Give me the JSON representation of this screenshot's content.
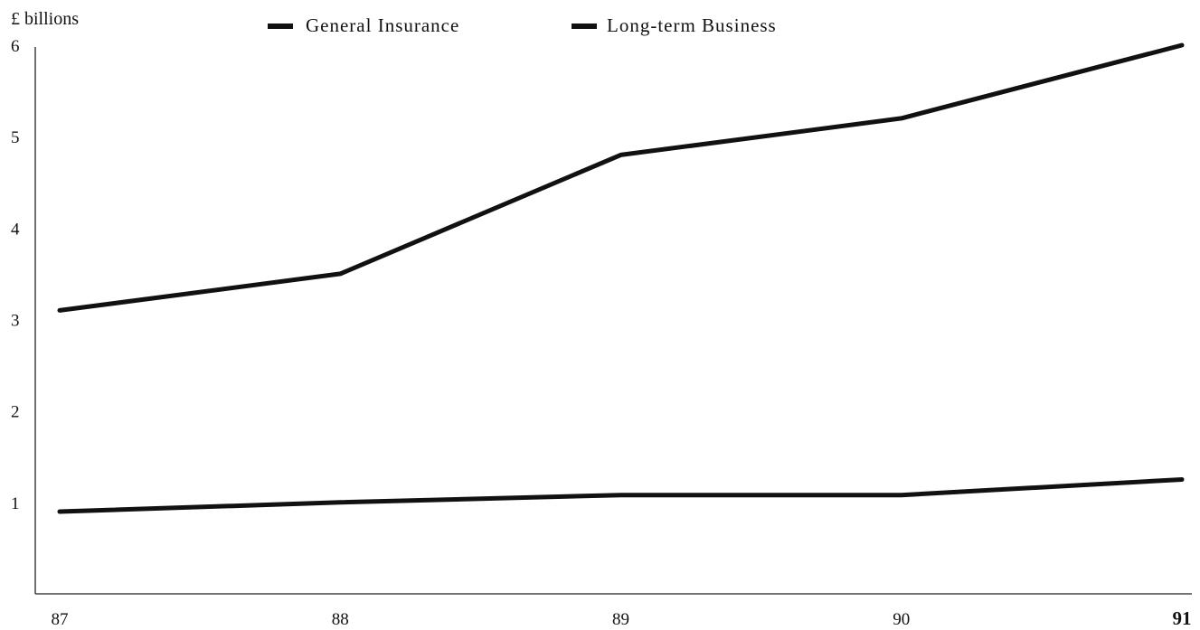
{
  "chart_data": {
    "type": "line",
    "ylabel": "£ billions",
    "xlabel": "",
    "title": "",
    "x": [
      "87",
      "88",
      "89",
      "90",
      "91"
    ],
    "xlim": [
      87,
      91
    ],
    "ylim": [
      0,
      6
    ],
    "yticks": [
      1,
      2,
      3,
      4,
      5,
      6
    ],
    "grid": false,
    "legend_position": "top",
    "series": [
      {
        "name": "General Insurance",
        "values": [
          3.1,
          3.5,
          4.8,
          5.2,
          6.0
        ],
        "color": "#111111"
      },
      {
        "name": "Long-term Business",
        "values": [
          0.9,
          1.0,
          1.08,
          1.08,
          1.25
        ],
        "color": "#111111"
      }
    ]
  }
}
